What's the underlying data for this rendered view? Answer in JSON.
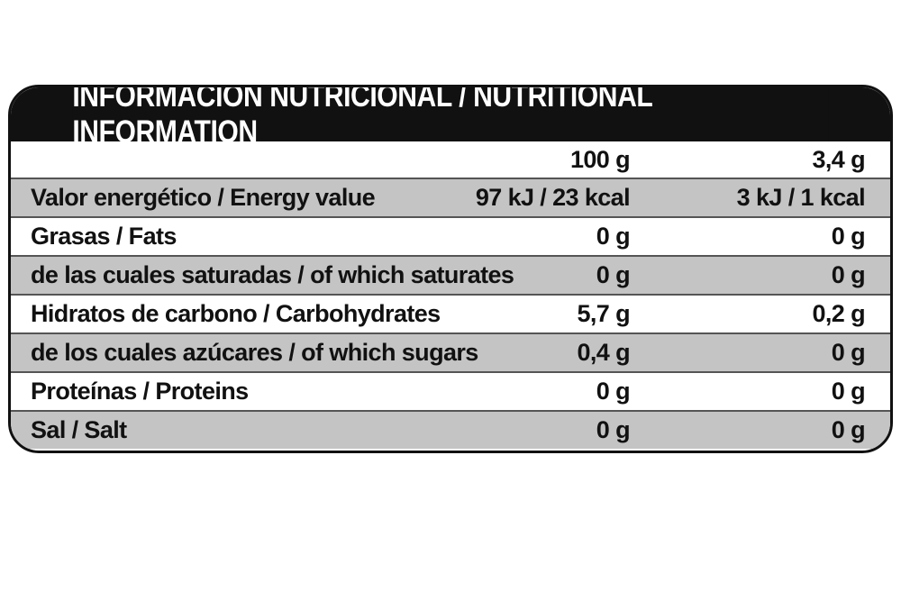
{
  "table": {
    "title": "INFORMACIÓN NUTRICIONAL / NUTRITIONAL INFORMATION",
    "columns": [
      "100 g",
      "3,4 g"
    ],
    "rows": [
      {
        "label": "Valor energético / Energy value",
        "per_100g": "97 kJ / 23 kcal",
        "per_portion": "3 kJ / 1 kcal"
      },
      {
        "label": "Grasas / Fats",
        "per_100g": "0 g",
        "per_portion": "0 g"
      },
      {
        "label": "de las cuales saturadas / of which saturates",
        "per_100g": "0 g",
        "per_portion": "0 g"
      },
      {
        "label": "Hidratos de carbono / Carbohydrates",
        "per_100g": "5,7 g",
        "per_portion": "0,2 g"
      },
      {
        "label": "de los cuales azúcares / of which sugars",
        "per_100g": "0,4 g",
        "per_portion": "0 g"
      },
      {
        "label": "Proteínas / Proteins",
        "per_100g": "0 g",
        "per_portion": "0 g"
      },
      {
        "label": "Sal / Salt",
        "per_100g": "0 g",
        "per_portion": "0 g"
      }
    ]
  },
  "colors": {
    "title_background": "#111111",
    "title_text": "#ffffff",
    "shaded_row": "#c4c4c4",
    "border": "#111111"
  }
}
